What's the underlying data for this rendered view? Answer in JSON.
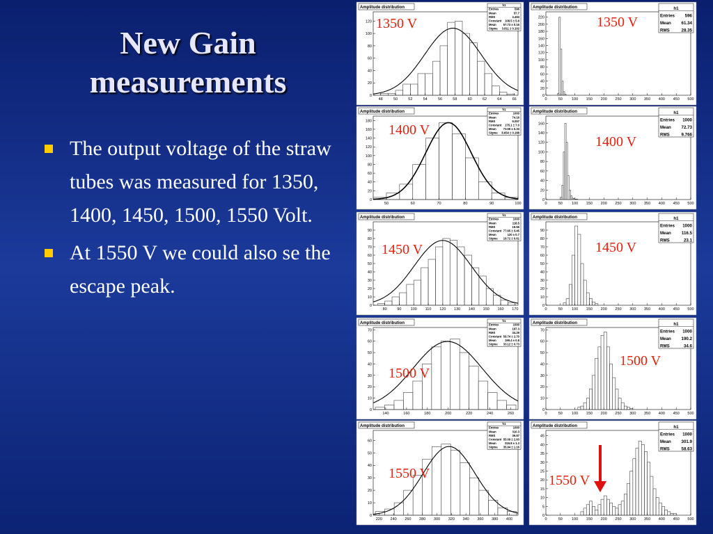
{
  "slide": {
    "title": "New Gain measurements",
    "bullets": [
      "The output voltage of the straw tubes was measured for 1350, 1400, 1450, 1500, 1550 Volt.",
      "At 1550 V we could also se the escape peak."
    ]
  },
  "panels": [
    {
      "column": "left",
      "title": "Amplitude distribution",
      "stats_title": "h1",
      "voltage": "1350 V",
      "xlim": [
        47,
        66.5
      ],
      "ylim": [
        0,
        135
      ],
      "xticks": [
        48,
        50,
        52,
        54,
        56,
        58,
        60,
        62,
        64,
        66
      ],
      "yticks": [
        0,
        20,
        40,
        60,
        80,
        100,
        120
      ],
      "stats": [
        {
          "name": "Entries",
          "value": 596
        },
        {
          "name": "Mean",
          "value": 57.7
        },
        {
          "name": "RMS",
          "value": 3.493
        },
        {
          "name": "Constant",
          "value": 108.5,
          "label": "108.5 ± 5.6"
        },
        {
          "name": "Mean",
          "value": 57.73,
          "label": "57.73 ± 0.16"
        },
        {
          "name": "Sigma",
          "value": 3.811,
          "label": "3.811 ± 0.102"
        }
      ],
      "bins": [
        48,
        49,
        50,
        51,
        52,
        53,
        54,
        55,
        56,
        57,
        58,
        59,
        60,
        61,
        62,
        63,
        64,
        65,
        66
      ],
      "counts": [
        3,
        3,
        8,
        18,
        18,
        35,
        35,
        55,
        80,
        118,
        120,
        100,
        85,
        55,
        35,
        15,
        5,
        2
      ]
    },
    {
      "column": "left",
      "title": "Amplitude distribution",
      "stats_title": "h1",
      "voltage": "1400 V",
      "xlim": [
        45,
        100
      ],
      "ylim": [
        0,
        190
      ],
      "xticks": [
        50,
        60,
        70,
        80,
        90,
        100
      ],
      "yticks": [
        0,
        20,
        40,
        60,
        80,
        100,
        120,
        140,
        160,
        180
      ],
      "stats": [
        {
          "name": "Entries",
          "value": 1000
        },
        {
          "name": "Mean",
          "value": 74.16
        },
        {
          "name": "RMS",
          "value": 9.057
        },
        {
          "name": "Constant",
          "value": 175.1,
          "label": "175.1 ± 7.0"
        },
        {
          "name": "Mean",
          "value": 73.59,
          "label": "73.59 ± 0.33"
        },
        {
          "name": "Sigma",
          "value": 8.654,
          "label": "8.654 ± 0.188"
        }
      ],
      "bins": [
        45,
        50,
        55,
        60,
        65,
        70,
        75,
        80,
        85,
        90,
        95,
        100
      ],
      "counts": [
        5,
        15,
        35,
        80,
        140,
        175,
        150,
        95,
        40,
        15,
        5
      ]
    },
    {
      "column": "left",
      "title": "Amplitude distribution",
      "stats_title": "h1",
      "voltage": "1450 V",
      "xlim": [
        72,
        172
      ],
      "ylim": [
        0,
        100
      ],
      "xticks": [
        80,
        90,
        100,
        110,
        120,
        130,
        140,
        150,
        160,
        170
      ],
      "yticks": [
        0,
        10,
        20,
        30,
        40,
        50,
        60,
        70,
        80,
        90
      ],
      "stats": [
        {
          "name": "Entries",
          "value": 1000
        },
        {
          "name": "Mean",
          "value": 118.5
        },
        {
          "name": "RMS",
          "value": 19.56
        },
        {
          "name": "Constant",
          "value": 77.65,
          "label": "77.65 ± 3.45"
        },
        {
          "name": "Mean",
          "value": 120,
          "label": "120 ± 0.7"
        },
        {
          "name": "Sigma",
          "value": 19.72,
          "label": "19.72 ± 0.61"
        }
      ],
      "bins": [
        75,
        80,
        85,
        90,
        95,
        100,
        105,
        110,
        115,
        120,
        125,
        130,
        135,
        140,
        145,
        150,
        155,
        160,
        165,
        170
      ],
      "counts": [
        2,
        5,
        10,
        15,
        25,
        30,
        45,
        55,
        70,
        80,
        78,
        70,
        60,
        45,
        35,
        20,
        12,
        6,
        3
      ]
    },
    {
      "column": "left",
      "title": "Amplitude distribution",
      "stats_title": "h1",
      "voltage": "1500 V",
      "xlim": [
        128,
        267
      ],
      "ylim": [
        0,
        72
      ],
      "xticks": [
        140,
        160,
        180,
        200,
        220,
        240,
        260
      ],
      "yticks": [
        0,
        10,
        20,
        30,
        40,
        50,
        60,
        70
      ],
      "stats": [
        {
          "name": "Entries",
          "value": 1000
        },
        {
          "name": "Mean",
          "value": 197.3
        },
        {
          "name": "RMS",
          "value": 34.29
        },
        {
          "name": "Constant",
          "value": 59.74,
          "label": "59.74 ± 2.70"
        },
        {
          "name": "Mean",
          "value": 199.4,
          "label": "199.4 ± 0.8"
        },
        {
          "name": "Sigma",
          "value": 33.12,
          "label": "33.12 ± 0.73"
        }
      ],
      "bins": [
        130,
        139,
        148,
        157,
        166,
        175,
        184,
        193,
        202,
        211,
        220,
        229,
        238,
        247,
        256,
        265
      ],
      "counts": [
        2,
        4,
        8,
        15,
        25,
        40,
        55,
        60,
        62,
        50,
        38,
        25,
        15,
        8,
        4
      ]
    },
    {
      "column": "left",
      "title": "Amplitude distribution",
      "stats_title": "h1",
      "voltage": "1550 V",
      "xlim": [
        212,
        412
      ],
      "ylim": [
        0,
        68
      ],
      "xticks": [
        220,
        240,
        260,
        280,
        300,
        320,
        340,
        360,
        380,
        400
      ],
      "yticks": [
        0,
        10,
        20,
        30,
        40,
        50,
        60
      ],
      "stats": [
        {
          "name": "Entries",
          "value": 1000
        },
        {
          "name": "Mean",
          "value": 310.3
        },
        {
          "name": "RMS",
          "value": 36.87
        },
        {
          "name": "Constant",
          "value": 55.09,
          "label": "55.09 ± 2.63"
        },
        {
          "name": "Mean",
          "value": 316.8,
          "label": "316.8 ± 1.3"
        },
        {
          "name": "Sigma",
          "value": 35.94,
          "label": "35.94 ± 1.16"
        }
      ],
      "bins": [
        215,
        228,
        241,
        254,
        267,
        280,
        293,
        306,
        319,
        332,
        345,
        358,
        371,
        384,
        397,
        410
      ],
      "counts": [
        3,
        5,
        10,
        20,
        32,
        45,
        55,
        57,
        52,
        42,
        30,
        20,
        12,
        6,
        3
      ]
    },
    {
      "column": "right",
      "title": "Amplitude distribution",
      "stats_title": "h1",
      "voltage": "1350 V",
      "xlim": [
        0,
        500
      ],
      "ylim": [
        0,
        235
      ],
      "xticks": [
        0,
        50,
        100,
        150,
        200,
        250,
        300,
        350,
        400,
        450,
        500
      ],
      "yticks": [
        0,
        20,
        40,
        60,
        80,
        100,
        120,
        140,
        160,
        180,
        200,
        220
      ],
      "stats": [
        {
          "name": "Entries",
          "value": 596
        },
        {
          "name": "Mean",
          "value": 61.34
        },
        {
          "name": "RMS",
          "value": 28.35
        }
      ],
      "bins": [
        40,
        45,
        50,
        55,
        60,
        65,
        70
      ],
      "counts": [
        5,
        220,
        130,
        40,
        10,
        3
      ]
    },
    {
      "column": "right",
      "title": "Amplitude distribution",
      "stats_title": "h1",
      "voltage": "1400 V",
      "xlim": [
        0,
        500
      ],
      "ylim": [
        0,
        175
      ],
      "xticks": [
        0,
        50,
        100,
        150,
        200,
        250,
        300,
        350,
        400,
        450,
        500
      ],
      "yticks": [
        0,
        20,
        40,
        60,
        80,
        100,
        120,
        140,
        160
      ],
      "stats": [
        {
          "name": "Entries",
          "value": 1000
        },
        {
          "name": "Mean",
          "value": 72.73
        },
        {
          "name": "RMS",
          "value": 9.766
        }
      ],
      "bins": [
        50,
        55,
        60,
        65,
        70,
        75,
        80,
        85,
        90,
        95,
        100,
        105,
        110
      ],
      "counts": [
        5,
        30,
        100,
        160,
        120,
        50,
        20,
        8,
        3,
        2,
        1,
        1
      ]
    },
    {
      "column": "right",
      "title": "Amplitude distribution",
      "stats_title": "h1",
      "voltage": "1450 V",
      "xlim": [
        0,
        500
      ],
      "ylim": [
        0,
        100
      ],
      "xticks": [
        0,
        50,
        100,
        150,
        200,
        250,
        300,
        350,
        400,
        450,
        500
      ],
      "yticks": [
        0,
        10,
        20,
        30,
        40,
        50,
        60,
        70,
        80,
        90
      ],
      "stats": [
        {
          "name": "Entries",
          "value": 1000
        },
        {
          "name": "Mean",
          "value": 116.5
        },
        {
          "name": "RMS",
          "value": 23.1
        }
      ],
      "bins": [
        60,
        70,
        80,
        90,
        100,
        110,
        120,
        130,
        140,
        150,
        160,
        170,
        180
      ],
      "counts": [
        3,
        8,
        25,
        60,
        95,
        85,
        50,
        30,
        15,
        8,
        4,
        2
      ]
    },
    {
      "column": "right",
      "title": "Amplitude distribution",
      "stats_title": "h1",
      "voltage": "1500 V",
      "xlim": [
        0,
        500
      ],
      "ylim": [
        0,
        72
      ],
      "xticks": [
        0,
        50,
        100,
        150,
        200,
        250,
        300,
        350,
        400,
        450,
        500
      ],
      "yticks": [
        0,
        10,
        20,
        30,
        40,
        50,
        60,
        70
      ],
      "stats": [
        {
          "name": "Entries",
          "value": 1000
        },
        {
          "name": "Mean",
          "value": 190.2
        },
        {
          "name": "RMS",
          "value": 34.6
        }
      ],
      "bins": [
        110,
        120,
        130,
        140,
        150,
        160,
        170,
        180,
        190,
        200,
        210,
        220,
        230,
        240,
        250,
        260,
        270,
        280,
        290,
        300
      ],
      "counts": [
        2,
        3,
        6,
        10,
        18,
        30,
        45,
        55,
        65,
        68,
        55,
        40,
        28,
        18,
        10,
        6,
        3,
        2,
        1
      ]
    },
    {
      "column": "right",
      "title": "Amplitude distribution",
      "stats_title": "h1",
      "voltage": "1550 V",
      "xlim": [
        0,
        500
      ],
      "ylim": [
        0,
        48
      ],
      "xticks": [
        0,
        50,
        100,
        150,
        200,
        250,
        300,
        350,
        400,
        450,
        500
      ],
      "yticks": [
        0,
        5,
        10,
        15,
        20,
        25,
        30,
        35,
        40,
        45
      ],
      "stats": [
        {
          "name": "Entries",
          "value": 1000
        },
        {
          "name": "Mean",
          "value": 301.9
        },
        {
          "name": "RMS",
          "value": 58.63
        }
      ],
      "bins": [
        120,
        130,
        140,
        150,
        160,
        170,
        180,
        190,
        200,
        210,
        220,
        230,
        240,
        250,
        260,
        270,
        280,
        290,
        300,
        310,
        320,
        330,
        340,
        350,
        360,
        370,
        380,
        390,
        400,
        410,
        420,
        430,
        440,
        450
      ],
      "counts": [
        2,
        4,
        6,
        8,
        5,
        3,
        6,
        9,
        11,
        9,
        7,
        5,
        4,
        6,
        8,
        12,
        18,
        25,
        32,
        38,
        42,
        40,
        36,
        30,
        22,
        15,
        10,
        7,
        5,
        3,
        2,
        1,
        1
      ]
    }
  ]
}
